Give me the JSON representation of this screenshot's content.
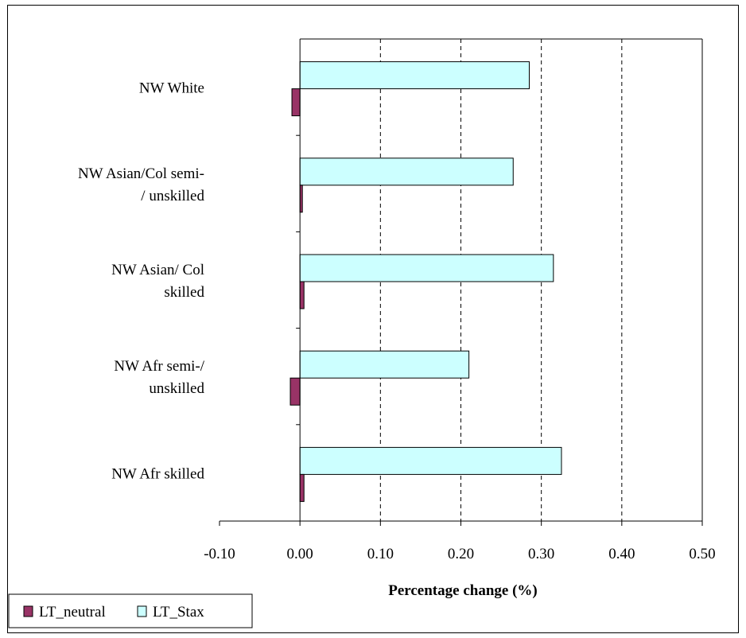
{
  "chart_data": {
    "type": "bar",
    "orientation": "horizontal",
    "categories": [
      "NW White",
      "NW Asian/Col semi-\n/ unskilled",
      "NW Asian/ Col\nskilled",
      "NW Afr semi-/\nunskilled",
      "NW Afr skilled"
    ],
    "series": [
      {
        "name": "LT_neutral",
        "color": "#993366",
        "values": [
          -0.01,
          0.003,
          0.005,
          -0.012,
          0.005
        ]
      },
      {
        "name": "LT_Stax",
        "color": "#CCFFFF",
        "values": [
          0.285,
          0.265,
          0.315,
          0.21,
          0.325
        ]
      }
    ],
    "xlabel": "Percentage change (%)",
    "xlim": [
      -0.1,
      0.5
    ],
    "xticks": [
      -0.1,
      0.0,
      0.1,
      0.2,
      0.3,
      0.4,
      0.5
    ],
    "tick_labels": [
      "-0.10",
      "0.00",
      "0.10",
      "0.20",
      "0.30",
      "0.40",
      "0.50"
    ],
    "grid": {
      "x": true,
      "style": "dashed"
    },
    "legend_position": "bottom-left"
  }
}
